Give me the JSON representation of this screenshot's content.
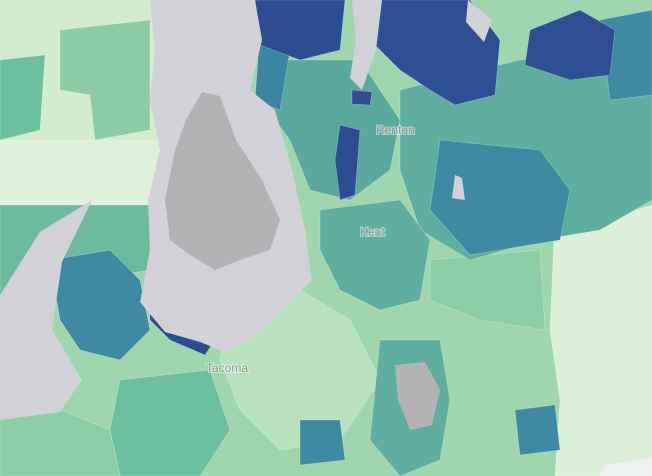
{
  "map": {
    "places": [
      {
        "label": "Renton"
      },
      {
        "label": "Kent"
      },
      {
        "label": "Tacoma"
      }
    ]
  }
}
